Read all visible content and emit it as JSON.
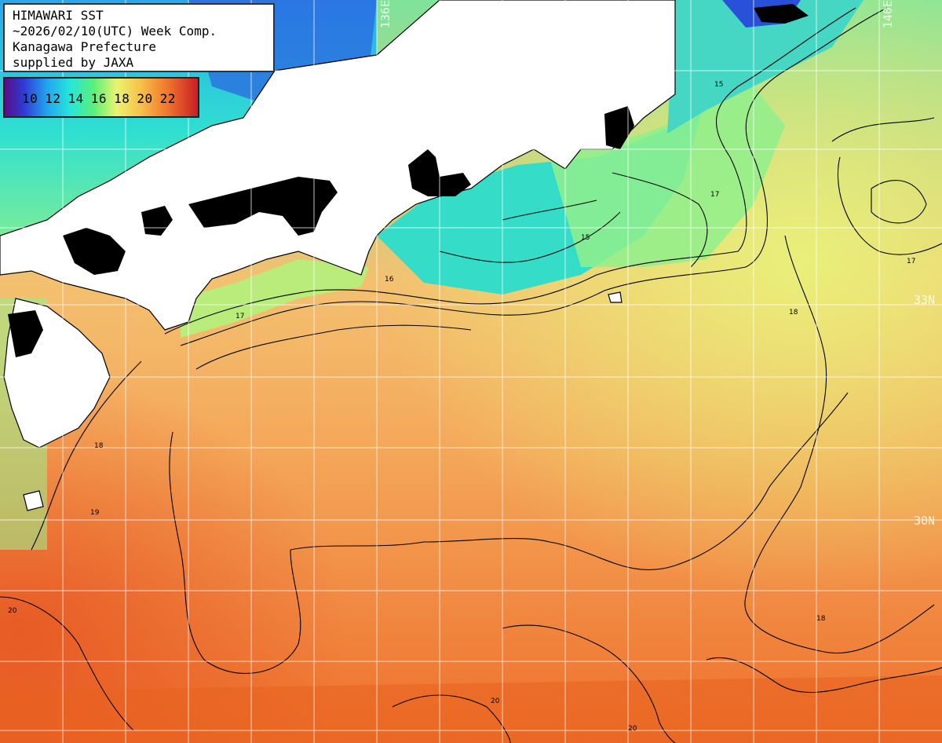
{
  "title": {
    "line1": "HIMAWARI SST",
    "line2": "~2026/02/10(UTC) Week Comp.",
    "line3": "Kanagawa Prefecture",
    "line4": "supplied by JAXA"
  },
  "legend": {
    "labels": [
      "10",
      "12",
      "14",
      "16",
      "18",
      "20",
      "22"
    ],
    "colors": [
      "#5a0d86",
      "#2e3bd6",
      "#22a6ee",
      "#27e6d8",
      "#59f07a",
      "#eaf36f",
      "#f8c24a",
      "#f0782c",
      "#c81e24"
    ]
  },
  "axes": {
    "lon_labels": [
      "136E",
      "140E"
    ],
    "lat_labels": [
      "33N",
      "30N"
    ]
  },
  "contour_labels": [
    "15",
    "16",
    "17",
    "18",
    "19",
    "20"
  ],
  "colors": {
    "land": "#ffffff",
    "cloud_mask": "#000000",
    "warm_sea": "#f39a45",
    "cool_sea": "#3fd6c6",
    "grid": "#ffffff"
  }
}
